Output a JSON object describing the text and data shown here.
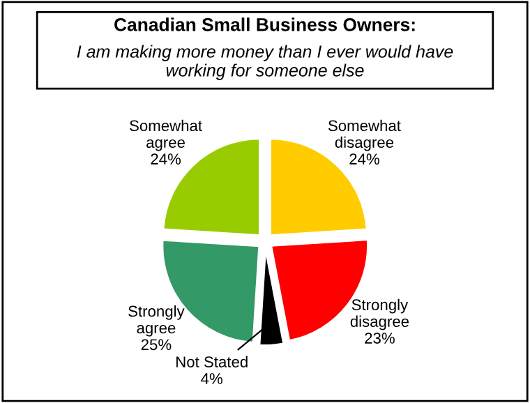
{
  "chart_data": {
    "type": "pie",
    "title": "Canadian Small Business Owners:",
    "subtitle": "I am making more money than I ever would have\nworking for someone else",
    "categories": [
      "Somewhat\ndisagree",
      "Strongly\ndisagree",
      "Not Stated",
      "Strongly\nagree",
      "Somewhat\nagree"
    ],
    "values": [
      24,
      23,
      4,
      25,
      24
    ],
    "value_labels": [
      "24%",
      "23%",
      "4%",
      "25%",
      "24%"
    ],
    "colors": [
      "#ffcc00",
      "#ff0000",
      "#000000",
      "#339966",
      "#99cc00"
    ]
  }
}
